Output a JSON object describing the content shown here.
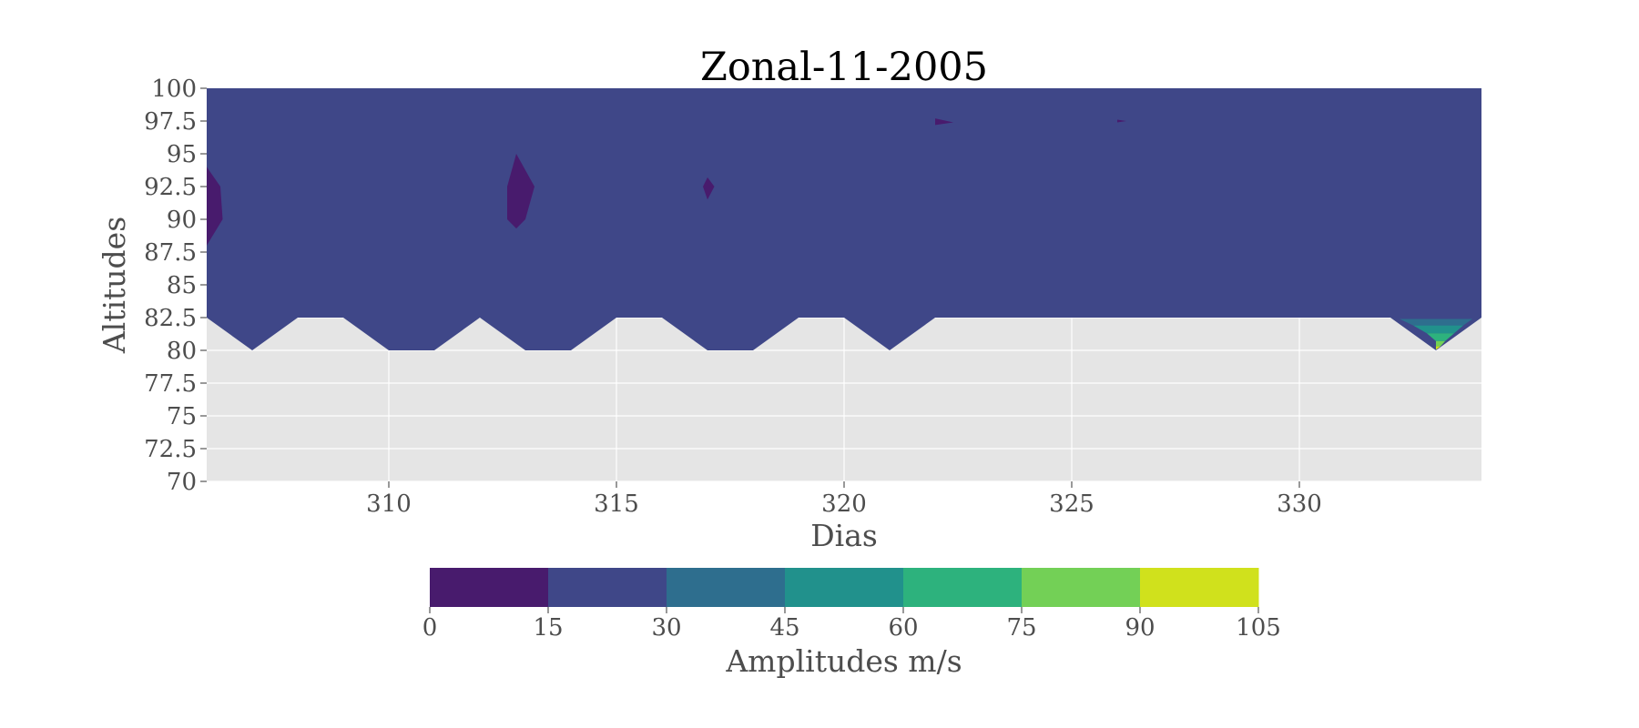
{
  "chart_data": {
    "type": "contourf",
    "title": "Zonal-11-2005",
    "xlabel": "Dias",
    "ylabel": "Altitudes",
    "xlim": [
      306,
      334
    ],
    "ylim": [
      70,
      100
    ],
    "x_ticks": [
      310,
      315,
      320,
      325,
      330
    ],
    "y_ticks": [
      70,
      72.5,
      75,
      77.5,
      80,
      82.5,
      85,
      87.5,
      90,
      92.5,
      95,
      97.5,
      100
    ],
    "y_tick_labels": [
      "70",
      "72.5",
      "75",
      "77.5",
      "80",
      "82.5",
      "85",
      "87.5",
      "90",
      "92.5",
      "95",
      "97.5",
      "100"
    ],
    "grid": true,
    "background": "#e5e5e5",
    "colorbar": {
      "label": "Amplitudes m/s",
      "orientation": "horizontal",
      "levels": [
        0,
        15,
        30,
        45,
        60,
        75,
        90,
        105
      ],
      "colors": [
        "#481b6d",
        "#3f4788",
        "#2e6e8e",
        "#21918c",
        "#2db27d",
        "#73d056",
        "#d0e11c"
      ]
    },
    "data_lower_boundary": {
      "description": "lowest altitude with data per day",
      "x": [
        306,
        307,
        308,
        309,
        310,
        311,
        312,
        313,
        314,
        315,
        316,
        317,
        318,
        319,
        320,
        321,
        322,
        323,
        324,
        325,
        326,
        327,
        328,
        329,
        330,
        331,
        332,
        333,
        334
      ],
      "y": [
        82.5,
        80,
        82.5,
        82.5,
        80,
        80,
        82.5,
        80,
        80,
        82.5,
        82.5,
        80,
        80,
        82.5,
        82.5,
        80,
        82.5,
        82.5,
        82.5,
        82.5,
        82.5,
        82.5,
        82.5,
        82.5,
        82.5,
        82.5,
        82.5,
        80,
        82.5
      ]
    },
    "dominant_band": "15-30",
    "regions": [
      {
        "band": "0-15",
        "polygon": [
          [
            306,
            94
          ],
          [
            306.3,
            92.5
          ],
          [
            306.35,
            90
          ],
          [
            306,
            88
          ]
        ]
      },
      {
        "band": "0-15",
        "polygon": [
          [
            313,
            96
          ],
          [
            312.8,
            95
          ],
          [
            313.2,
            92.5
          ],
          [
            313,
            90
          ],
          [
            312.8,
            89.3
          ],
          [
            312.6,
            90
          ],
          [
            312.6,
            92.5
          ],
          [
            312.8,
            95
          ]
        ]
      },
      {
        "band": "0-15",
        "polygon": [
          [
            317,
            93.2
          ],
          [
            317.15,
            92.5
          ],
          [
            317,
            91.5
          ],
          [
            316.9,
            92.5
          ]
        ]
      },
      {
        "band": "0-15",
        "polygon": [
          [
            322,
            97.7
          ],
          [
            322.4,
            97.4
          ],
          [
            322,
            97.2
          ]
        ]
      },
      {
        "band": "0-15",
        "polygon": [
          [
            326,
            97.6
          ],
          [
            326.2,
            97.5
          ],
          [
            326,
            97.4
          ]
        ]
      },
      {
        "band": "30-45",
        "polygon": [
          [
            332.2,
            82.4
          ],
          [
            333.8,
            82.4
          ],
          [
            333.6,
            81.9
          ],
          [
            332.5,
            81.9
          ]
        ]
      },
      {
        "band": "45-60",
        "polygon": [
          [
            332.5,
            81.9
          ],
          [
            333.6,
            81.9
          ],
          [
            333.4,
            81.3
          ],
          [
            332.8,
            81.3
          ]
        ]
      },
      {
        "band": "60-75",
        "polygon": [
          [
            332.8,
            81.3
          ],
          [
            333.4,
            81.3
          ],
          [
            333.2,
            80.7
          ],
          [
            333,
            80.7
          ]
        ]
      },
      {
        "band": "75-90",
        "polygon": [
          [
            333,
            80.7
          ],
          [
            333.2,
            80.7
          ],
          [
            333.1,
            80.3
          ],
          [
            333,
            80.3
          ]
        ]
      },
      {
        "band": "90-105",
        "polygon": [
          [
            333,
            80.3
          ],
          [
            333.1,
            80.3
          ],
          [
            333,
            80.05
          ]
        ]
      }
    ]
  }
}
